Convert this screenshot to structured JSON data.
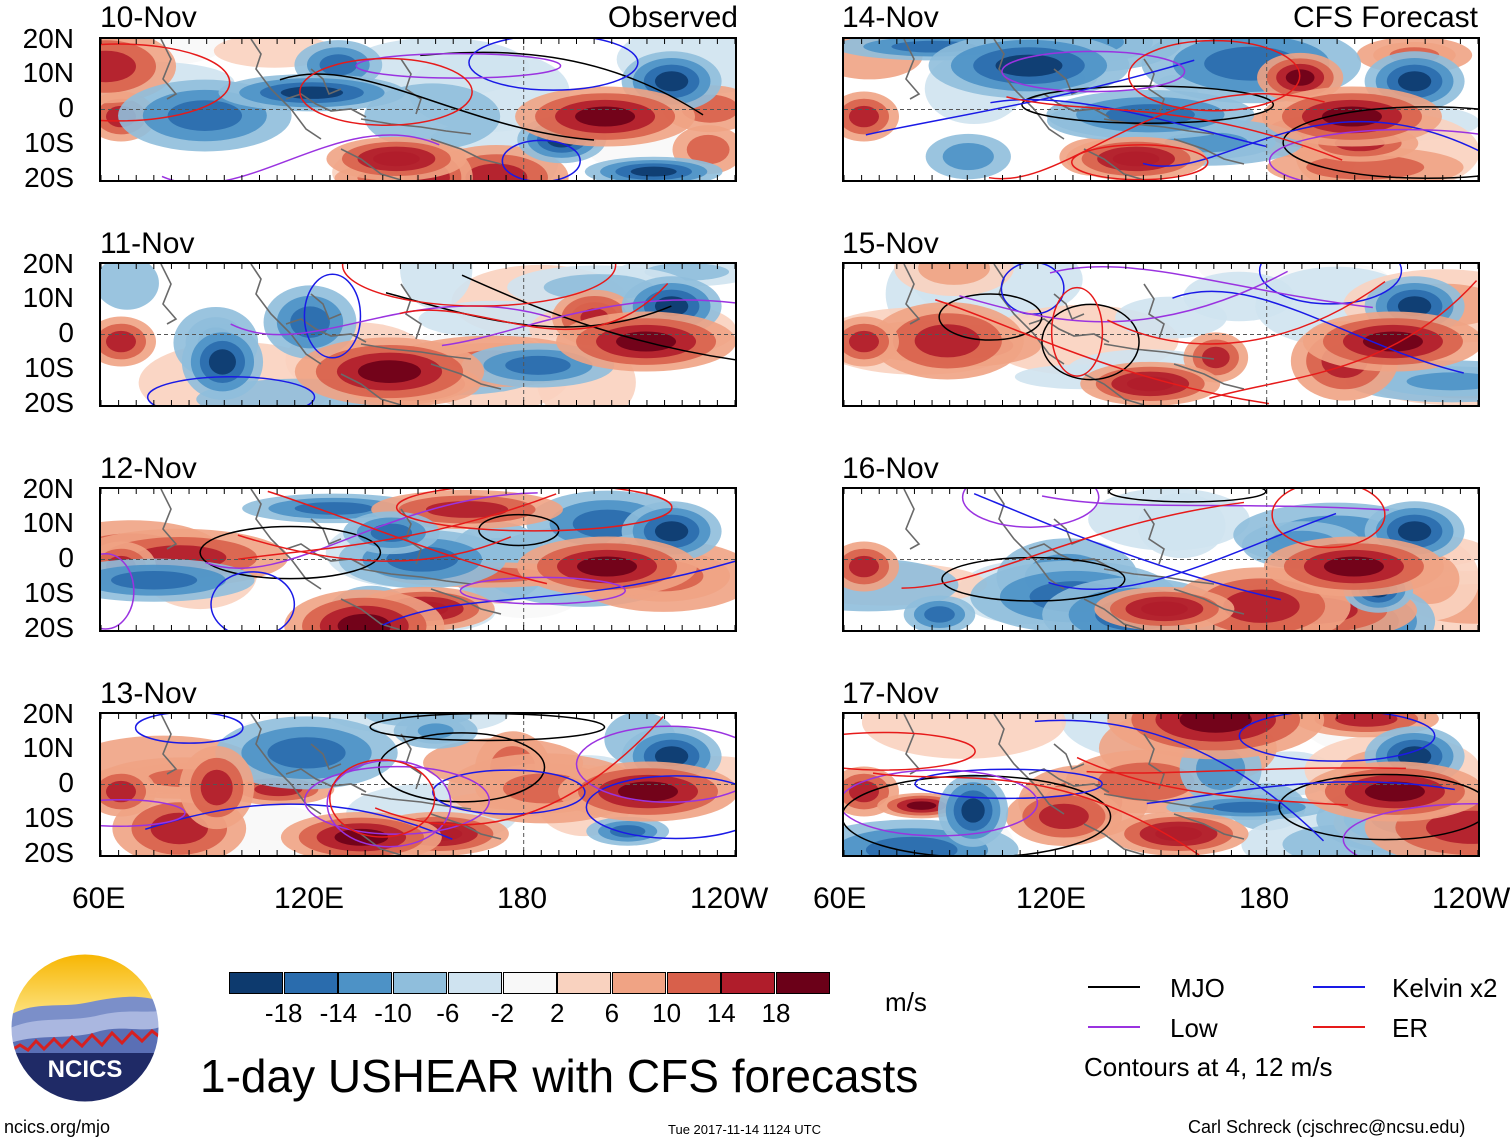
{
  "title": "1-day USHEAR with CFS forecasts",
  "left_column_label": "Observed",
  "right_column_label": "CFS Forecast",
  "panels_left": [
    {
      "date": "10-Nov"
    },
    {
      "date": "11-Nov"
    },
    {
      "date": "12-Nov"
    },
    {
      "date": "13-Nov"
    }
  ],
  "panels_right": [
    {
      "date": "14-Nov"
    },
    {
      "date": "15-Nov"
    },
    {
      "date": "16-Nov"
    },
    {
      "date": "17-Nov"
    }
  ],
  "lat_labels": [
    "20N",
    "10N",
    "0",
    "10S",
    "20S"
  ],
  "lon_labels": [
    "60E",
    "120E",
    "180",
    "120W"
  ],
  "colorbar": {
    "ticks": [
      "-18",
      "-14",
      "-10",
      "-6",
      "-2",
      "2",
      "6",
      "10",
      "14",
      "18"
    ],
    "colors": [
      "#0d3a6e",
      "#2a6cad",
      "#4d92c6",
      "#8fbedc",
      "#cfe3f0",
      "#f8f8f8",
      "#f9d2bf",
      "#f0a384",
      "#d8604b",
      "#b01d2b",
      "#6b0018"
    ],
    "units": "m/s"
  },
  "legend": [
    {
      "label": "MJO",
      "color": "#000000"
    },
    {
      "label": "Kelvin x2",
      "color": "#1a1ae6"
    },
    {
      "label": "Low",
      "color": "#9a33e0"
    },
    {
      "label": "ER",
      "color": "#e61a1a"
    }
  ],
  "contour_note": "Contours at 4, 12 m/s",
  "logo_text": "NCICS",
  "footer_left": "ncics.org/mjo",
  "footer_center": "Tue 2017-11-14 1124 UTC",
  "footer_right": "Carl Schreck (cjschrec@ncsu.edu)",
  "chart_data": {
    "type": "heatmap",
    "title": "1-day USHEAR with CFS forecasts",
    "variable": "USHEAR",
    "units": "m/s",
    "x_axis": {
      "labels": [
        "60E",
        "120E",
        "180",
        "120W"
      ],
      "range_deg_east": [
        60,
        240
      ]
    },
    "y_axis": {
      "labels": [
        "20N",
        "10N",
        "0",
        "10S",
        "20S"
      ],
      "range_deg": [
        -20,
        20
      ]
    },
    "color_levels": [
      -18,
      -14,
      -10,
      -6,
      -2,
      2,
      6,
      10,
      14,
      18
    ],
    "contour_levels_m_s": [
      4,
      12
    ],
    "contour_series": [
      "MJO",
      "Kelvin x2",
      "Low",
      "ER"
    ],
    "panels": [
      {
        "date": "10-Nov",
        "source": "Observed"
      },
      {
        "date": "11-Nov",
        "source": "Observed"
      },
      {
        "date": "12-Nov",
        "source": "Observed"
      },
      {
        "date": "13-Nov",
        "source": "Observed"
      },
      {
        "date": "14-Nov",
        "source": "CFS Forecast"
      },
      {
        "date": "15-Nov",
        "source": "CFS Forecast"
      },
      {
        "date": "16-Nov",
        "source": "CFS Forecast"
      },
      {
        "date": "17-Nov",
        "source": "CFS Forecast"
      }
    ]
  }
}
